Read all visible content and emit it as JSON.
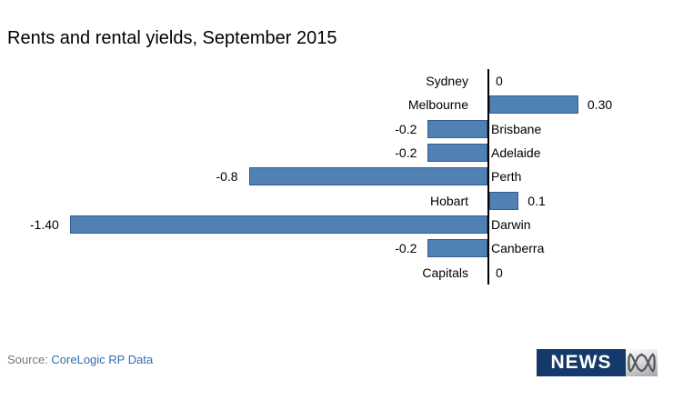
{
  "title": "Rents and rental yields, September 2015",
  "chart_data": {
    "type": "bar",
    "orientation": "horizontal",
    "title": "Rents and rental yields, September 2015",
    "categories": [
      "Sydney",
      "Melbourne",
      "Brisbane",
      "Adelaide",
      "Perth",
      "Hobart",
      "Darwin",
      "Canberra",
      "Capitals"
    ],
    "values": [
      0,
      0.3,
      -0.2,
      -0.2,
      -0.8,
      0.1,
      -1.4,
      -0.2,
      0
    ],
    "value_labels": [
      "0",
      "0.30",
      "-0.2",
      "-0.2",
      "-0.8",
      "0.1",
      "-1.40",
      "-0.2",
      "0"
    ],
    "xlim": [
      -1.5,
      0.6
    ],
    "grid": false,
    "legend": false,
    "bar_color": "#4f81b5",
    "bar_border_color": "#385d8a",
    "axis_color": "#000000"
  },
  "source": {
    "prefix": "Source: ",
    "link_label": "CoreLogic RP Data",
    "prefix_color": "#77787b",
    "link_color": "#2e6db5"
  },
  "branding": {
    "news_label": "NEWS",
    "news_bg_color": "#16396b",
    "abc_mark_color": "#54565b"
  }
}
